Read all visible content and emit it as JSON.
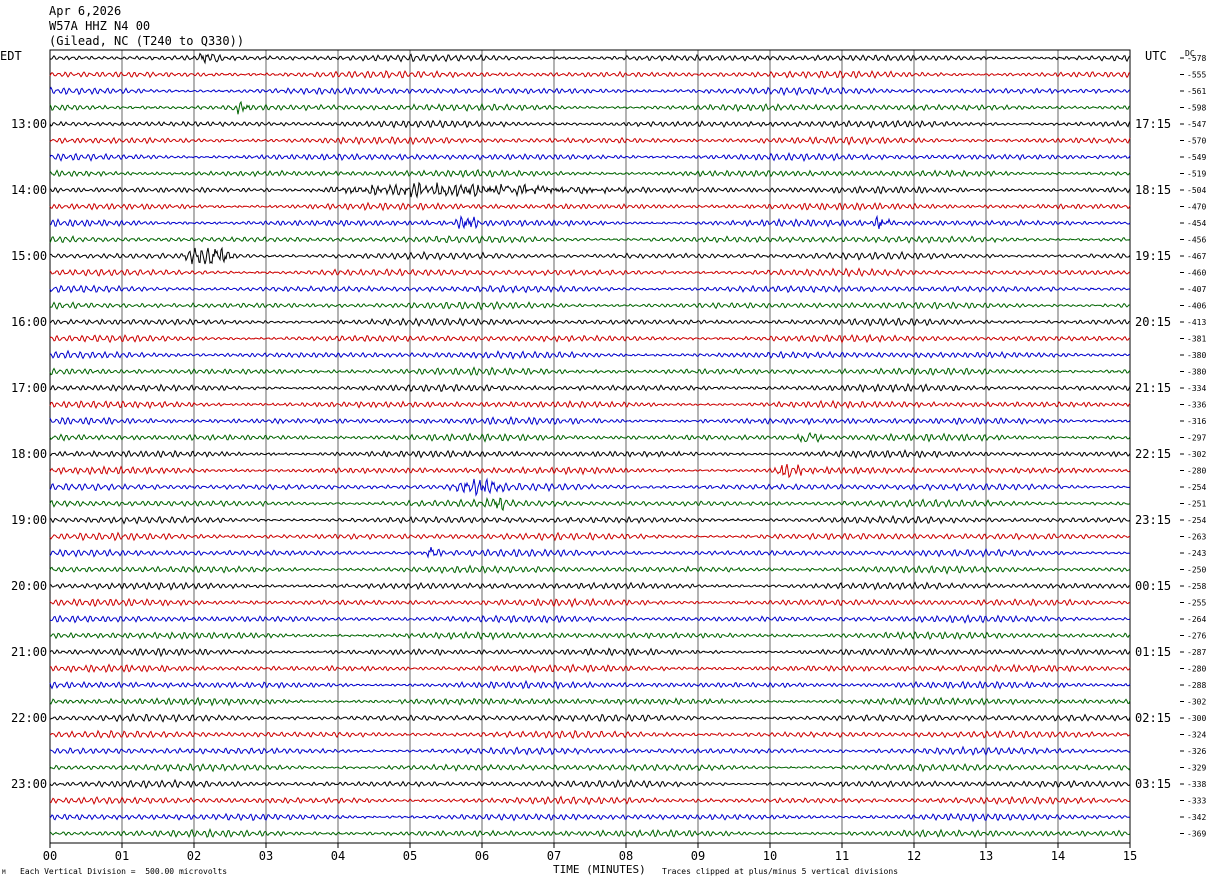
{
  "header": {
    "date": "Apr 6,2026",
    "station": "W57A HHZ N4 00",
    "location": "(Gilead, NC (T240 to Q330))"
  },
  "left_timezone": "EDT",
  "right_timezone": "UTC",
  "dc_label": "DC",
  "footer": {
    "scale_note": "Each Vertical Division =  500.00 microvolts",
    "xlabel": "TIME (MINUTES)",
    "clip_note": "Traces clipped at plus/minus 5 vertical divisions",
    "corner_mark": "M"
  },
  "colors": {
    "trace_cycle": [
      "#000000",
      "#cc0000",
      "#0000cc",
      "#006400"
    ],
    "grid": "#000000",
    "background": "#ffffff"
  },
  "chart_data": {
    "type": "line",
    "title": "W57A HHZ N4 00",
    "xlabel": "TIME (MINUTES)",
    "xlim": [
      0,
      15
    ],
    "x_ticks": [
      "00",
      "01",
      "02",
      "03",
      "04",
      "05",
      "06",
      "07",
      "08",
      "09",
      "10",
      "11",
      "12",
      "13",
      "14",
      "15"
    ],
    "row_interval_minutes": 15,
    "edt_hour_labels": [
      "13:00",
      "14:00",
      "15:00",
      "16:00",
      "17:00",
      "18:00",
      "19:00",
      "20:00",
      "21:00",
      "22:00",
      "23:00"
    ],
    "utc_hour_labels": [
      "17:15",
      "18:15",
      "19:15",
      "20:15",
      "21:15",
      "22:15",
      "23:15",
      "00:15",
      "01:15",
      "02:15",
      "03:15"
    ],
    "dc_offsets": [
      -578,
      -555,
      -561,
      -598,
      -547,
      -570,
      -549,
      -519,
      -504,
      -470,
      -454,
      -456,
      -467,
      -460,
      -407,
      -406,
      -413,
      -381,
      -380,
      -380,
      -334,
      -336,
      -316,
      -297,
      -302,
      -280,
      -254,
      -251,
      -254,
      -263,
      -243,
      -250,
      -258,
      -255,
      -264,
      -276,
      -287,
      -280,
      -288,
      -302,
      -300,
      -324,
      -326,
      -329,
      -338,
      -333,
      -342,
      -369
    ],
    "events": [
      {
        "row": 0,
        "start_min": 2.0,
        "end_min": 2.4,
        "amp": 1.4
      },
      {
        "row": 3,
        "start_min": 2.5,
        "end_min": 2.8,
        "amp": 1.4
      },
      {
        "row": 8,
        "start_min": 3.3,
        "end_min": 8.5,
        "amp": 1.3
      },
      {
        "row": 10,
        "start_min": 5.6,
        "end_min": 6.0,
        "amp": 1.6
      },
      {
        "row": 10,
        "start_min": 11.4,
        "end_min": 11.7,
        "amp": 1.4
      },
      {
        "row": 12,
        "start_min": 1.8,
        "end_min": 2.6,
        "amp": 2.6
      },
      {
        "row": 23,
        "start_min": 10.3,
        "end_min": 10.8,
        "amp": 1.3
      },
      {
        "row": 25,
        "start_min": 10.0,
        "end_min": 10.5,
        "amp": 1.6
      },
      {
        "row": 26,
        "start_min": 5.5,
        "end_min": 6.4,
        "amp": 1.6
      },
      {
        "row": 27,
        "start_min": 6.0,
        "end_min": 6.4,
        "amp": 1.3
      },
      {
        "row": 30,
        "start_min": 5.1,
        "end_min": 5.5,
        "amp": 1.5
      }
    ]
  }
}
